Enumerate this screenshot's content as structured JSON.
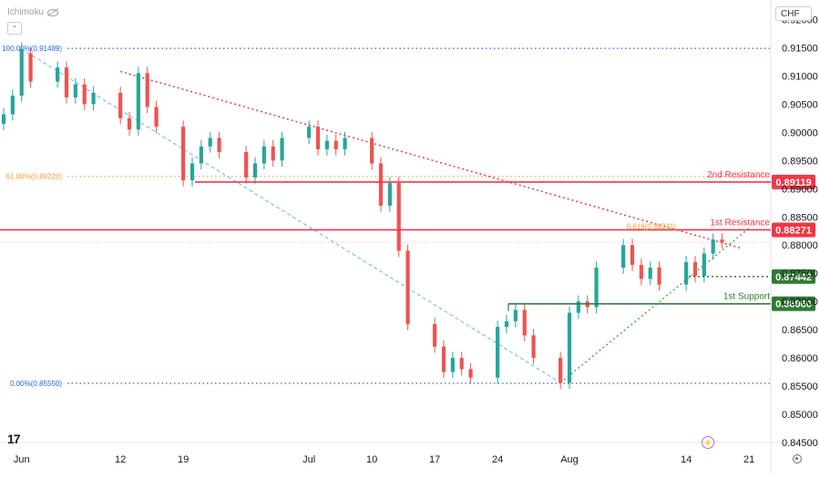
{
  "header": {
    "indicator": "Ichimoku",
    "currency": "CHF"
  },
  "colors": {
    "up": "#26a69a",
    "down": "#ef5350",
    "wick": "#555555",
    "resistance": "#f23645",
    "support": "#2e7d32",
    "fib": "#2962ff",
    "fib_gold": "#f2a12a",
    "trend_red": "#f23645",
    "trend_green": "#4caf50",
    "blue_diag": "#64b5f6",
    "axis_text": "#131722",
    "grid": "#eef0f3"
  },
  "chart_data": {
    "type": "candlestick",
    "title": "",
    "ylim": [
      0.845,
      0.9225
    ],
    "y_ticks": [
      "0.92000",
      "0.91500",
      "0.91000",
      "0.90500",
      "0.90000",
      "0.89500",
      "0.89000",
      "0.88500",
      "0.88000",
      "0.87500",
      "0.87000",
      "0.86500",
      "0.86000",
      "0.85500",
      "0.85000",
      "0.84500"
    ],
    "y_tick_values": [
      0.92,
      0.915,
      0.91,
      0.905,
      0.9,
      0.895,
      0.89,
      0.885,
      0.88,
      0.875,
      0.87,
      0.865,
      0.86,
      0.855,
      0.85,
      0.845
    ],
    "x_range": [
      "2023-05-30",
      "2023-08-22"
    ],
    "x_ticks": [
      {
        "date": "2023-06-01",
        "label": "Jun"
      },
      {
        "date": "2023-06-12",
        "label": "12"
      },
      {
        "date": "2023-06-19",
        "label": "19"
      },
      {
        "date": "2023-07-03",
        "label": "Jul"
      },
      {
        "date": "2023-07-10",
        "label": "10"
      },
      {
        "date": "2023-07-17",
        "label": "17"
      },
      {
        "date": "2023-07-24",
        "label": "24"
      },
      {
        "date": "2023-08-01",
        "label": "Aug"
      },
      {
        "date": "2023-08-14",
        "label": "14"
      },
      {
        "date": "2023-08-21",
        "label": "21"
      }
    ],
    "candles_close": [
      {
        "date": "2023-05-30",
        "open": 0.9015,
        "close": 0.9032
      },
      {
        "date": "2023-05-31",
        "open": 0.9032,
        "close": 0.9065
      },
      {
        "date": "2023-06-01",
        "open": 0.9065,
        "close": 0.9148
      },
      {
        "date": "2023-06-02",
        "open": 0.914,
        "close": 0.909
      },
      {
        "date": "2023-06-05",
        "open": 0.909,
        "close": 0.9115
      },
      {
        "date": "2023-06-06",
        "open": 0.9115,
        "close": 0.9062
      },
      {
        "date": "2023-06-07",
        "open": 0.9062,
        "close": 0.9085
      },
      {
        "date": "2023-06-08",
        "open": 0.9085,
        "close": 0.905
      },
      {
        "date": "2023-06-09",
        "open": 0.905,
        "close": 0.907
      },
      {
        "date": "2023-06-12",
        "open": 0.907,
        "close": 0.9025
      },
      {
        "date": "2023-06-13",
        "open": 0.9025,
        "close": 0.9005
      },
      {
        "date": "2023-06-14",
        "open": 0.9005,
        "close": 0.9105
      },
      {
        "date": "2023-06-15",
        "open": 0.9105,
        "close": 0.9045
      },
      {
        "date": "2023-06-16",
        "open": 0.9045,
        "close": 0.901
      },
      {
        "date": "2023-06-19",
        "open": 0.901,
        "close": 0.8915
      },
      {
        "date": "2023-06-20",
        "open": 0.8915,
        "close": 0.8945
      },
      {
        "date": "2023-06-21",
        "open": 0.8945,
        "close": 0.8975
      },
      {
        "date": "2023-06-22",
        "open": 0.8975,
        "close": 0.899
      },
      {
        "date": "2023-06-23",
        "open": 0.899,
        "close": 0.8965
      },
      {
        "date": "2023-06-26",
        "open": 0.8965,
        "close": 0.892
      },
      {
        "date": "2023-06-27",
        "open": 0.892,
        "close": 0.8945
      },
      {
        "date": "2023-06-28",
        "open": 0.8945,
        "close": 0.8975
      },
      {
        "date": "2023-06-29",
        "open": 0.8975,
        "close": 0.895
      },
      {
        "date": "2023-06-30",
        "open": 0.895,
        "close": 0.899
      },
      {
        "date": "2023-07-03",
        "open": 0.899,
        "close": 0.901
      },
      {
        "date": "2023-07-04",
        "open": 0.901,
        "close": 0.897
      },
      {
        "date": "2023-07-05",
        "open": 0.897,
        "close": 0.8985
      },
      {
        "date": "2023-07-06",
        "open": 0.8985,
        "close": 0.897
      },
      {
        "date": "2023-07-07",
        "open": 0.897,
        "close": 0.899
      },
      {
        "date": "2023-07-10",
        "open": 0.899,
        "close": 0.8945
      },
      {
        "date": "2023-07-11",
        "open": 0.8945,
        "close": 0.887
      },
      {
        "date": "2023-07-12",
        "open": 0.887,
        "close": 0.891
      },
      {
        "date": "2023-07-13",
        "open": 0.891,
        "close": 0.879
      },
      {
        "date": "2023-07-14",
        "open": 0.879,
        "close": 0.866
      },
      {
        "date": "2023-07-17",
        "open": 0.866,
        "close": 0.862
      },
      {
        "date": "2023-07-18",
        "open": 0.862,
        "close": 0.8575
      },
      {
        "date": "2023-07-19",
        "open": 0.8575,
        "close": 0.86
      },
      {
        "date": "2023-07-20",
        "open": 0.86,
        "close": 0.858
      },
      {
        "date": "2023-07-21",
        "open": 0.858,
        "close": 0.8565
      },
      {
        "date": "2023-07-24",
        "open": 0.8565,
        "close": 0.8655
      },
      {
        "date": "2023-07-25",
        "open": 0.8655,
        "close": 0.8665
      },
      {
        "date": "2023-07-26",
        "open": 0.8665,
        "close": 0.8685
      },
      {
        "date": "2023-07-27",
        "open": 0.8685,
        "close": 0.864
      },
      {
        "date": "2023-07-28",
        "open": 0.864,
        "close": 0.86
      },
      {
        "date": "2023-07-31",
        "open": 0.86,
        "close": 0.8556
      },
      {
        "date": "2023-08-01",
        "open": 0.8556,
        "close": 0.868
      },
      {
        "date": "2023-08-02",
        "open": 0.868,
        "close": 0.87
      },
      {
        "date": "2023-08-03",
        "open": 0.87,
        "close": 0.869
      },
      {
        "date": "2023-08-04",
        "open": 0.869,
        "close": 0.876
      },
      {
        "date": "2023-08-07",
        "open": 0.876,
        "close": 0.88
      },
      {
        "date": "2023-08-08",
        "open": 0.88,
        "close": 0.8765
      },
      {
        "date": "2023-08-09",
        "open": 0.8765,
        "close": 0.874
      },
      {
        "date": "2023-08-10",
        "open": 0.874,
        "close": 0.876
      },
      {
        "date": "2023-08-11",
        "open": 0.876,
        "close": 0.873
      },
      {
        "date": "2023-08-14",
        "open": 0.873,
        "close": 0.877
      },
      {
        "date": "2023-08-15",
        "open": 0.877,
        "close": 0.8745
      },
      {
        "date": "2023-08-16",
        "open": 0.8745,
        "close": 0.8785
      },
      {
        "date": "2023-08-17",
        "open": 0.8785,
        "close": 0.881
      },
      {
        "date": "2023-08-18",
        "open": 0.881,
        "close": 0.8805
      }
    ],
    "levels": [
      {
        "label": "2nd Resistance",
        "value": "0.89119",
        "price": 0.89119,
        "kind": "resistance"
      },
      {
        "label": "1st Resistance",
        "value": "0.88271",
        "price": 0.88271,
        "kind": "resistance"
      },
      {
        "label": "",
        "value": "0.87442",
        "price": 0.87442,
        "kind": "support_dotted"
      },
      {
        "label": "1st Support",
        "value": "0.86960",
        "price": 0.8696,
        "kind": "support"
      }
    ],
    "fib_labels": [
      {
        "text": "100.00%(0.91489)",
        "price": 0.91489
      },
      {
        "text": "61.80%(0.89220)",
        "price": 0.8922
      },
      {
        "text": "0.00%(0.85550)",
        "price": 0.8555
      }
    ],
    "annotation_618": "0.618(0.88241)",
    "annotation_618_price": 0.88241,
    "current_price": 0.8805,
    "trendlines": {
      "red_top": [
        {
          "date": "2023-06-12",
          "price": 0.9108
        },
        {
          "date": "2023-08-20",
          "price": 0.8795
        }
      ],
      "green_bottom": [
        {
          "date": "2023-07-31",
          "price": 0.8556
        },
        {
          "date": "2023-08-21",
          "price": 0.883
        }
      ],
      "blue_diag": [
        {
          "date": "2023-06-01",
          "price": 0.9148
        },
        {
          "date": "2023-07-31",
          "price": 0.8556
        }
      ]
    },
    "legend": "none",
    "grid": false
  }
}
